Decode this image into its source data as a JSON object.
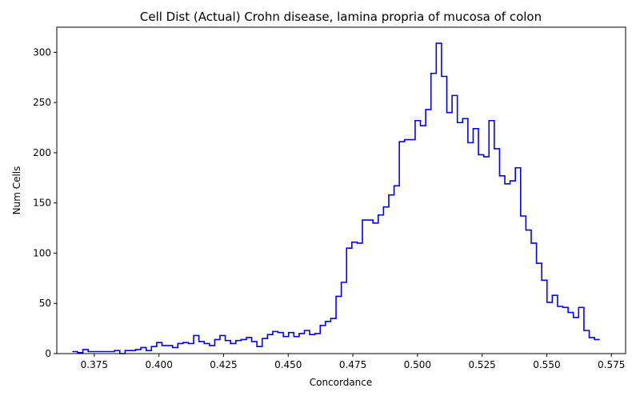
{
  "chart_data": {
    "type": "histogram",
    "title": "Cell Dist (Actual) Crohn disease, lamina propria of mucosa of colon",
    "xlabel": "Concordance",
    "ylabel": "Num Cells",
    "xlim": [
      0.3605,
      0.5805
    ],
    "ylim": [
      0,
      325
    ],
    "x_ticks": [
      0.375,
      0.4,
      0.425,
      0.45,
      0.475,
      0.5,
      0.525,
      0.55,
      0.575
    ],
    "x_tick_labels": [
      "0.375",
      "0.400",
      "0.425",
      "0.450",
      "0.475",
      "0.500",
      "0.525",
      "0.550",
      "0.575"
    ],
    "y_ticks": [
      0,
      50,
      100,
      150,
      200,
      250,
      300
    ],
    "y_tick_labels": [
      "0",
      "50",
      "100",
      "150",
      "200",
      "250",
      "300"
    ],
    "grid": false,
    "legend": "none",
    "series": [
      {
        "color": "#0000ff",
        "bin_start": 0.3665,
        "bin_end": 0.5705,
        "counts": [
          2,
          1,
          4,
          2,
          2,
          2,
          2,
          2,
          3,
          0,
          3,
          3,
          4,
          6,
          3,
          7,
          11,
          8,
          8,
          6,
          10,
          11,
          10,
          18,
          12,
          10,
          8,
          14,
          18,
          13,
          10,
          13,
          14,
          16,
          12,
          7,
          15,
          19,
          22,
          21,
          17,
          21,
          17,
          20,
          23,
          19,
          20,
          28,
          32,
          35,
          57,
          71,
          105,
          111,
          110,
          133,
          133,
          130,
          138,
          146,
          158,
          167,
          211,
          213,
          213,
          232,
          227,
          243,
          279,
          309,
          276,
          240,
          257,
          230,
          234,
          210,
          224,
          198,
          196,
          232,
          204,
          177,
          169,
          172,
          185,
          137,
          123,
          110,
          90,
          73,
          51,
          58,
          47,
          46,
          41,
          36,
          46,
          23,
          16,
          14
        ]
      }
    ]
  }
}
